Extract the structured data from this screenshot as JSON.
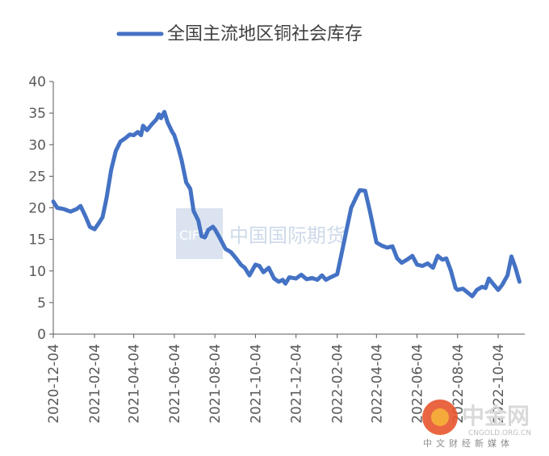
{
  "chart_data": {
    "type": "line",
    "title": "",
    "xlabel": "",
    "ylabel": "",
    "legend": {
      "position": "top-center"
    },
    "grid": false,
    "ylim": [
      0,
      40
    ],
    "y_ticks": [
      "0",
      "5",
      "10",
      "15",
      "20",
      "25",
      "30",
      "35",
      "40"
    ],
    "x_ticks": [
      "2020-12-04",
      "2021-02-04",
      "2021-04-04",
      "2021-06-04",
      "2021-08-04",
      "2021-10-04",
      "2021-12-04",
      "2022-02-04",
      "2022-04-04",
      "2022-06-04",
      "2022-08-04",
      "2022-10-04"
    ],
    "x_range": [
      "2020-12-04",
      "2022-11-13"
    ],
    "series": [
      {
        "name": "全国主流地区铜社会库存",
        "color": "#4472C4",
        "points": [
          [
            "2020-12-04",
            21.0
          ],
          [
            "2020-12-10",
            20.0
          ],
          [
            "2020-12-20",
            19.8
          ],
          [
            "2020-12-30",
            19.4
          ],
          [
            "2021-01-08",
            19.8
          ],
          [
            "2021-01-14",
            20.3
          ],
          [
            "2021-01-22",
            18.5
          ],
          [
            "2021-01-28",
            17.0
          ],
          [
            "2021-02-04",
            16.6
          ],
          [
            "2021-02-10",
            17.5
          ],
          [
            "2021-02-16",
            18.5
          ],
          [
            "2021-02-22",
            21.5
          ],
          [
            "2021-03-01",
            26.0
          ],
          [
            "2021-03-08",
            29.0
          ],
          [
            "2021-03-15",
            30.5
          ],
          [
            "2021-03-22",
            31.0
          ],
          [
            "2021-03-29",
            31.6
          ],
          [
            "2021-04-04",
            31.5
          ],
          [
            "2021-04-10",
            32.0
          ],
          [
            "2021-04-15",
            31.5
          ],
          [
            "2021-04-18",
            33.0
          ],
          [
            "2021-04-24",
            32.3
          ],
          [
            "2021-05-01",
            33.2
          ],
          [
            "2021-05-08",
            34.0
          ],
          [
            "2021-05-12",
            34.8
          ],
          [
            "2021-05-15",
            34.2
          ],
          [
            "2021-05-20",
            35.2
          ],
          [
            "2021-05-25",
            33.5
          ],
          [
            "2021-06-01",
            32.0
          ],
          [
            "2021-06-04",
            31.5
          ],
          [
            "2021-06-10",
            29.5
          ],
          [
            "2021-06-15",
            27.5
          ],
          [
            "2021-06-22",
            24.0
          ],
          [
            "2021-06-28",
            23.0
          ],
          [
            "2021-07-03",
            19.5
          ],
          [
            "2021-07-10",
            18.0
          ],
          [
            "2021-07-15",
            15.5
          ],
          [
            "2021-07-20",
            15.3
          ],
          [
            "2021-07-25",
            16.5
          ],
          [
            "2021-08-01",
            17.0
          ],
          [
            "2021-08-04",
            16.6
          ],
          [
            "2021-08-10",
            15.5
          ],
          [
            "2021-08-20",
            13.5
          ],
          [
            "2021-08-28",
            13.0
          ],
          [
            "2021-09-05",
            12.0
          ],
          [
            "2021-09-12",
            11.0
          ],
          [
            "2021-09-18",
            10.5
          ],
          [
            "2021-09-25",
            9.3
          ],
          [
            "2021-10-04",
            11.0
          ],
          [
            "2021-10-10",
            10.8
          ],
          [
            "2021-10-16",
            9.8
          ],
          [
            "2021-10-24",
            10.5
          ],
          [
            "2021-11-01",
            8.8
          ],
          [
            "2021-11-08",
            8.3
          ],
          [
            "2021-11-14",
            8.6
          ],
          [
            "2021-11-18",
            8.0
          ],
          [
            "2021-11-24",
            9.0
          ],
          [
            "2021-12-04",
            8.8
          ],
          [
            "2021-12-12",
            9.4
          ],
          [
            "2021-12-20",
            8.7
          ],
          [
            "2021-12-28",
            8.9
          ],
          [
            "2022-01-05",
            8.6
          ],
          [
            "2022-01-12",
            9.3
          ],
          [
            "2022-01-18",
            8.6
          ],
          [
            "2022-01-25",
            9.0
          ],
          [
            "2022-02-04",
            9.5
          ],
          [
            "2022-02-10",
            12.5
          ],
          [
            "2022-02-18",
            16.5
          ],
          [
            "2022-02-25",
            20.0
          ],
          [
            "2022-03-05",
            21.8
          ],
          [
            "2022-03-10",
            22.8
          ],
          [
            "2022-03-18",
            22.7
          ],
          [
            "2022-03-25",
            19.5
          ],
          [
            "2022-04-01",
            16.0
          ],
          [
            "2022-04-04",
            14.5
          ],
          [
            "2022-04-12",
            14.0
          ],
          [
            "2022-04-20",
            13.7
          ],
          [
            "2022-04-28",
            13.9
          ],
          [
            "2022-05-05",
            12.0
          ],
          [
            "2022-05-12",
            11.3
          ],
          [
            "2022-05-20",
            11.8
          ],
          [
            "2022-05-28",
            12.4
          ],
          [
            "2022-06-04",
            11.0
          ],
          [
            "2022-06-12",
            10.8
          ],
          [
            "2022-06-20",
            11.2
          ],
          [
            "2022-06-28",
            10.5
          ],
          [
            "2022-07-05",
            12.4
          ],
          [
            "2022-07-12",
            11.8
          ],
          [
            "2022-07-18",
            12.0
          ],
          [
            "2022-07-25",
            10.0
          ],
          [
            "2022-08-01",
            7.3
          ],
          [
            "2022-08-04",
            7.0
          ],
          [
            "2022-08-12",
            7.2
          ],
          [
            "2022-08-20",
            6.5
          ],
          [
            "2022-08-26",
            6.0
          ],
          [
            "2022-09-02",
            7.0
          ],
          [
            "2022-09-10",
            7.5
          ],
          [
            "2022-09-15",
            7.3
          ],
          [
            "2022-09-20",
            8.8
          ],
          [
            "2022-09-26",
            8.0
          ],
          [
            "2022-10-04",
            7.0
          ],
          [
            "2022-10-10",
            7.8
          ],
          [
            "2022-10-18",
            9.3
          ],
          [
            "2022-10-24",
            12.3
          ],
          [
            "2022-10-30",
            10.5
          ],
          [
            "2022-11-05",
            8.3
          ]
        ]
      }
    ]
  },
  "watermarks": {
    "center_logo": "CIFC",
    "center_text": "中国国际期货",
    "corner_text": "中金网",
    "corner_url": "CNGOLD.ORG.CN",
    "corner_subtitle": "中文财经新媒体"
  },
  "colors": {
    "series": "#4472C4",
    "axis": "#595959",
    "watermark_box": "#C9D6E8"
  }
}
